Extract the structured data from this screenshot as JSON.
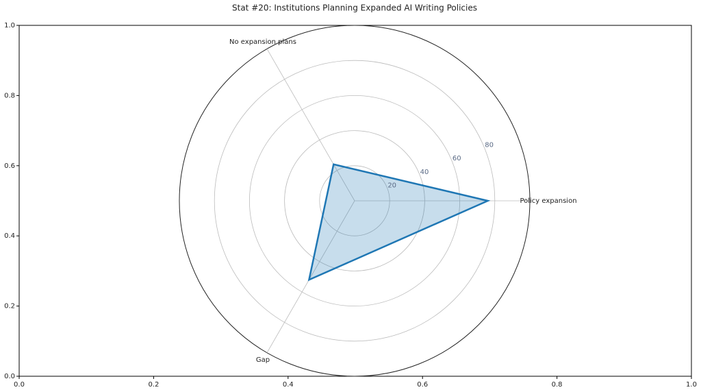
{
  "chart_data": {
    "type": "radar",
    "title": "Stat #20: Institutions Planning Expanded AI Writing Policies",
    "categories": [
      "Policy expansion",
      "No expansion plans",
      "Gap"
    ],
    "values": [
      76,
      24,
      52
    ],
    "color": "#1f77b4",
    "rlim": [
      0,
      100
    ],
    "rticks": [
      20,
      40,
      60,
      80
    ],
    "xlim": [
      0,
      1
    ],
    "ylim": [
      0,
      1
    ],
    "xticks": [
      {
        "value": 0,
        "label": "0.0"
      },
      {
        "value": 0.2,
        "label": "0.2"
      },
      {
        "value": 0.4,
        "label": "0.4"
      },
      {
        "value": 0.6,
        "label": "0.6"
      },
      {
        "value": 0.8,
        "label": "0.8"
      },
      {
        "value": 1,
        "label": "1.0"
      }
    ],
    "yticks": [
      {
        "value": 0,
        "label": "0.0"
      },
      {
        "value": 0.2,
        "label": "0.2"
      },
      {
        "value": 0.4,
        "label": "0.4"
      },
      {
        "value": 0.6,
        "label": "0.6"
      },
      {
        "value": 0.8,
        "label": "0.8"
      },
      {
        "value": 1,
        "label": "1.0"
      }
    ],
    "grid": true
  }
}
